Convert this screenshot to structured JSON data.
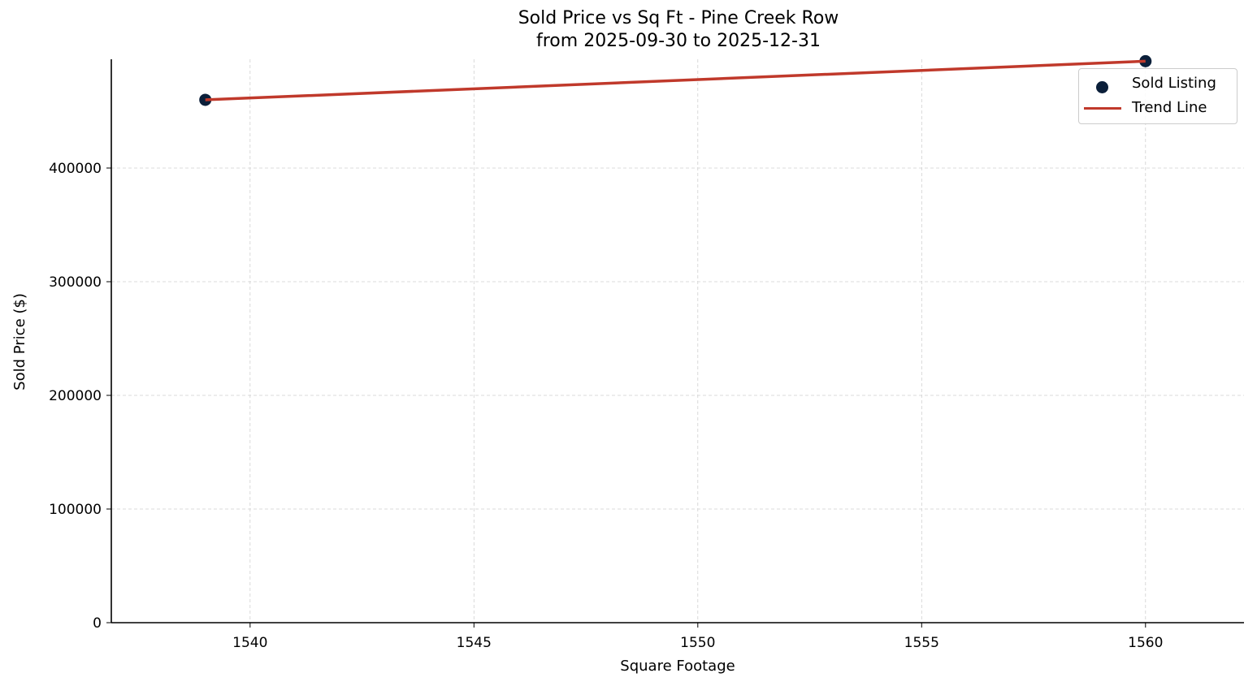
{
  "chart_data": {
    "type": "scatter",
    "title": "Sold Price vs Sq Ft - Pine Creek Row",
    "subtitle": "from 2025-09-30 to 2025-12-31",
    "xlabel": "Square Footage",
    "ylabel": "Sold Price ($)",
    "xlim": [
      1536.9,
      1562.2
    ],
    "ylim": [
      0,
      495700
    ],
    "x_ticks": [
      1540,
      1545,
      1550,
      1555,
      1560
    ],
    "y_ticks": [
      0,
      100000,
      200000,
      300000,
      400000
    ],
    "grid": true,
    "legend_position": "upper right",
    "series": [
      {
        "name": "Sold Listing",
        "kind": "scatter",
        "color": "#0b1f3a",
        "points": [
          {
            "x": 1539,
            "y": 460000
          },
          {
            "x": 1560,
            "y": 494000
          }
        ]
      },
      {
        "name": "Trend Line",
        "kind": "line",
        "color": "#c0392b",
        "points": [
          {
            "x": 1539,
            "y": 460000
          },
          {
            "x": 1560,
            "y": 494000
          }
        ]
      }
    ]
  },
  "labels": {
    "title_line1": "Sold Price vs Sq Ft - Pine Creek Row",
    "title_line2": "from 2025-09-30 to 2025-12-31",
    "xlabel": "Square Footage",
    "ylabel": "Sold Price ($)",
    "x_ticks": [
      "1540",
      "1545",
      "1550",
      "1555",
      "1560"
    ],
    "y_ticks": [
      "0",
      "100000",
      "200000",
      "300000",
      "400000"
    ],
    "legend": [
      "Sold Listing",
      "Trend Line"
    ]
  },
  "colors": {
    "point": "#0b1f3a",
    "trend": "#c0392b",
    "grid": "#d0d0d0",
    "axis": "#000000"
  }
}
